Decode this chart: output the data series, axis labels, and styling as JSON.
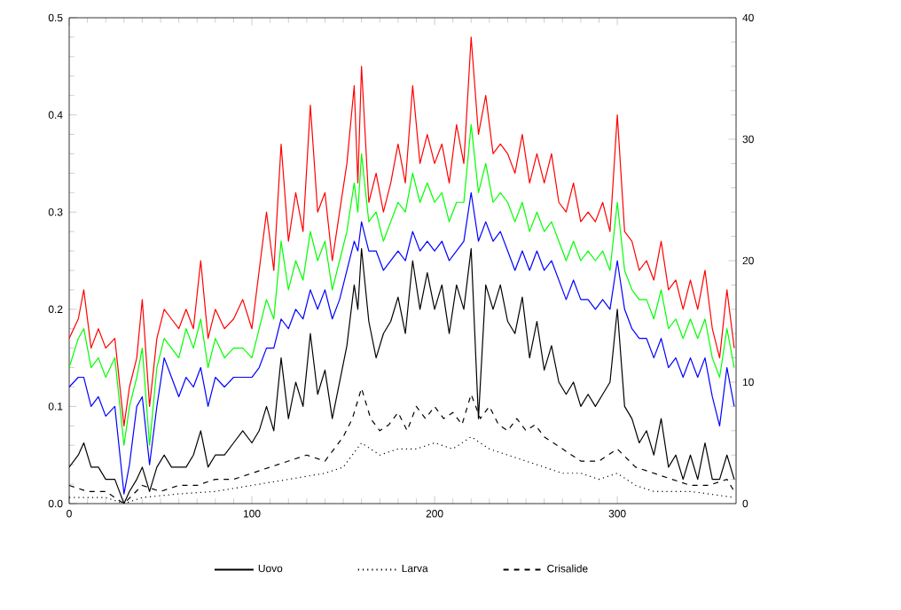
{
  "chart_data": {
    "type": "line",
    "x": [
      0,
      5,
      8,
      12,
      16,
      20,
      25,
      30,
      33,
      37,
      40,
      44,
      48,
      52,
      56,
      60,
      64,
      68,
      72,
      76,
      80,
      85,
      90,
      95,
      100,
      104,
      108,
      112,
      116,
      120,
      124,
      128,
      132,
      136,
      140,
      144,
      148,
      152,
      156,
      158,
      160,
      164,
      168,
      172,
      176,
      180,
      184,
      188,
      192,
      196,
      200,
      204,
      208,
      212,
      216,
      220,
      224,
      228,
      232,
      236,
      240,
      244,
      248,
      252,
      256,
      260,
      264,
      268,
      272,
      276,
      280,
      284,
      288,
      292,
      296,
      300,
      304,
      308,
      312,
      316,
      320,
      324,
      328,
      332,
      336,
      340,
      344,
      348,
      352,
      356,
      360,
      364
    ],
    "xlim": [
      0,
      365
    ],
    "xticks": [
      0,
      100,
      200,
      300
    ],
    "ylim": [
      0,
      0.5
    ],
    "yticks": [
      {
        "value": 0,
        "label": "0.0"
      },
      0.1,
      0.2,
      0.3,
      0.4,
      0.5
    ],
    "y2lim": [
      0,
      40
    ],
    "y2ticks": [
      0,
      10,
      20,
      30,
      40
    ],
    "legend": "bottom",
    "grid": false,
    "series": [
      {
        "color": "#ff0000",
        "line_style": "solid",
        "values": [
          0.17,
          0.19,
          0.22,
          0.16,
          0.18,
          0.16,
          0.17,
          0.08,
          0.12,
          0.15,
          0.21,
          0.1,
          0.17,
          0.2,
          0.19,
          0.18,
          0.2,
          0.18,
          0.25,
          0.17,
          0.2,
          0.18,
          0.19,
          0.21,
          0.18,
          0.24,
          0.3,
          0.24,
          0.37,
          0.27,
          0.32,
          0.28,
          0.41,
          0.3,
          0.32,
          0.25,
          0.3,
          0.35,
          0.43,
          0.33,
          0.45,
          0.31,
          0.34,
          0.3,
          0.33,
          0.37,
          0.33,
          0.43,
          0.35,
          0.38,
          0.35,
          0.37,
          0.33,
          0.39,
          0.35,
          0.48,
          0.38,
          0.42,
          0.36,
          0.37,
          0.36,
          0.34,
          0.38,
          0.33,
          0.36,
          0.33,
          0.36,
          0.31,
          0.3,
          0.33,
          0.29,
          0.3,
          0.29,
          0.31,
          0.28,
          0.4,
          0.28,
          0.27,
          0.24,
          0.25,
          0.23,
          0.27,
          0.22,
          0.23,
          0.2,
          0.23,
          0.2,
          0.24,
          0.18,
          0.15,
          0.22,
          0.16
        ]
      },
      {
        "color": "#00ff00",
        "line_style": "solid",
        "values": [
          0.14,
          0.17,
          0.18,
          0.14,
          0.15,
          0.13,
          0.15,
          0.06,
          0.1,
          0.13,
          0.16,
          0.06,
          0.14,
          0.17,
          0.16,
          0.15,
          0.18,
          0.16,
          0.19,
          0.14,
          0.17,
          0.15,
          0.16,
          0.16,
          0.15,
          0.18,
          0.21,
          0.19,
          0.27,
          0.22,
          0.25,
          0.23,
          0.28,
          0.25,
          0.27,
          0.22,
          0.25,
          0.28,
          0.33,
          0.3,
          0.36,
          0.29,
          0.3,
          0.27,
          0.29,
          0.31,
          0.3,
          0.34,
          0.31,
          0.33,
          0.31,
          0.32,
          0.29,
          0.31,
          0.31,
          0.39,
          0.32,
          0.35,
          0.31,
          0.32,
          0.31,
          0.29,
          0.31,
          0.28,
          0.3,
          0.28,
          0.29,
          0.27,
          0.25,
          0.27,
          0.25,
          0.26,
          0.25,
          0.26,
          0.24,
          0.31,
          0.24,
          0.22,
          0.21,
          0.21,
          0.19,
          0.22,
          0.18,
          0.19,
          0.17,
          0.19,
          0.17,
          0.19,
          0.15,
          0.13,
          0.18,
          0.14
        ]
      },
      {
        "color": "#0000ff",
        "line_style": "solid",
        "values": [
          0.12,
          0.13,
          0.13,
          0.1,
          0.11,
          0.09,
          0.1,
          0.01,
          0.04,
          0.1,
          0.11,
          0.04,
          0.1,
          0.15,
          0.13,
          0.11,
          0.13,
          0.12,
          0.14,
          0.1,
          0.13,
          0.12,
          0.13,
          0.13,
          0.13,
          0.14,
          0.16,
          0.16,
          0.19,
          0.18,
          0.2,
          0.19,
          0.22,
          0.2,
          0.22,
          0.19,
          0.21,
          0.24,
          0.27,
          0.26,
          0.29,
          0.26,
          0.26,
          0.24,
          0.25,
          0.26,
          0.25,
          0.28,
          0.26,
          0.27,
          0.26,
          0.27,
          0.25,
          0.26,
          0.27,
          0.32,
          0.27,
          0.29,
          0.27,
          0.28,
          0.26,
          0.24,
          0.26,
          0.24,
          0.26,
          0.24,
          0.25,
          0.23,
          0.21,
          0.23,
          0.21,
          0.21,
          0.2,
          0.21,
          0.2,
          0.25,
          0.2,
          0.18,
          0.17,
          0.17,
          0.15,
          0.17,
          0.14,
          0.15,
          0.13,
          0.15,
          0.13,
          0.15,
          0.11,
          0.08,
          0.14,
          0.1
        ]
      },
      {
        "name": "Uovo",
        "color": "#000000",
        "line_style": "solid",
        "axis": "y2",
        "values": [
          3,
          4,
          5,
          3,
          3,
          2,
          2,
          0,
          1,
          2,
          3,
          1,
          3,
          4,
          3,
          3,
          3,
          4,
          6,
          3,
          4,
          4,
          5,
          6,
          5,
          6,
          8,
          6,
          12,
          7,
          10,
          8,
          14,
          9,
          11,
          7,
          10,
          13,
          18,
          16,
          21,
          15,
          12,
          14,
          15,
          17,
          14,
          20,
          16,
          19,
          16,
          18,
          14,
          18,
          16,
          21,
          7,
          18,
          16,
          18,
          15,
          14,
          17,
          12,
          15,
          11,
          13,
          10,
          9,
          10,
          8,
          9,
          8,
          9,
          10,
          16,
          8,
          7,
          5,
          6,
          4,
          7,
          3,
          4,
          2,
          4,
          2,
          5,
          2,
          2,
          4,
          2
        ]
      },
      {
        "name": "Larva",
        "color": "#000000",
        "line_style": "dotted",
        "axis": "y2",
        "x": [
          0,
          10,
          20,
          30,
          40,
          60,
          80,
          100,
          120,
          140,
          150,
          160,
          170,
          180,
          190,
          200,
          210,
          220,
          230,
          240,
          250,
          260,
          270,
          280,
          290,
          300,
          310,
          320,
          340,
          350,
          364
        ],
        "values": [
          0.5,
          0.5,
          0.5,
          0,
          0.5,
          0.8,
          1,
          1.5,
          2,
          2.5,
          3,
          5,
          4,
          4.5,
          4.5,
          5,
          4.5,
          5.5,
          4.5,
          4,
          3.5,
          3,
          2.5,
          2.5,
          2,
          2.5,
          1.5,
          1,
          1,
          0.8,
          0.5
        ]
      },
      {
        "name": "Crisalide",
        "color": "#000000",
        "line_style": "dashed",
        "axis": "y2",
        "x": [
          0,
          10,
          20,
          30,
          40,
          50,
          60,
          70,
          80,
          90,
          100,
          110,
          120,
          130,
          140,
          150,
          155,
          160,
          165,
          170,
          175,
          180,
          185,
          190,
          195,
          200,
          205,
          210,
          215,
          220,
          225,
          230,
          235,
          240,
          245,
          250,
          255,
          260,
          265,
          270,
          275,
          280,
          290,
          300,
          310,
          320,
          330,
          340,
          350,
          360,
          364
        ],
        "values": [
          1.5,
          1,
          1,
          0,
          1.5,
          1,
          1.5,
          1.5,
          2,
          2,
          2.5,
          3,
          3.5,
          4,
          3.5,
          5.5,
          7,
          9.5,
          7,
          6,
          6.5,
          7.5,
          6,
          8,
          7,
          8,
          7,
          7.5,
          6.5,
          9,
          7,
          8,
          6.5,
          6,
          7,
          6,
          6.5,
          5.5,
          5,
          4.5,
          4,
          3.5,
          3.5,
          4.5,
          3,
          2.5,
          2,
          1.5,
          1.5,
          2,
          1
        ]
      }
    ]
  }
}
